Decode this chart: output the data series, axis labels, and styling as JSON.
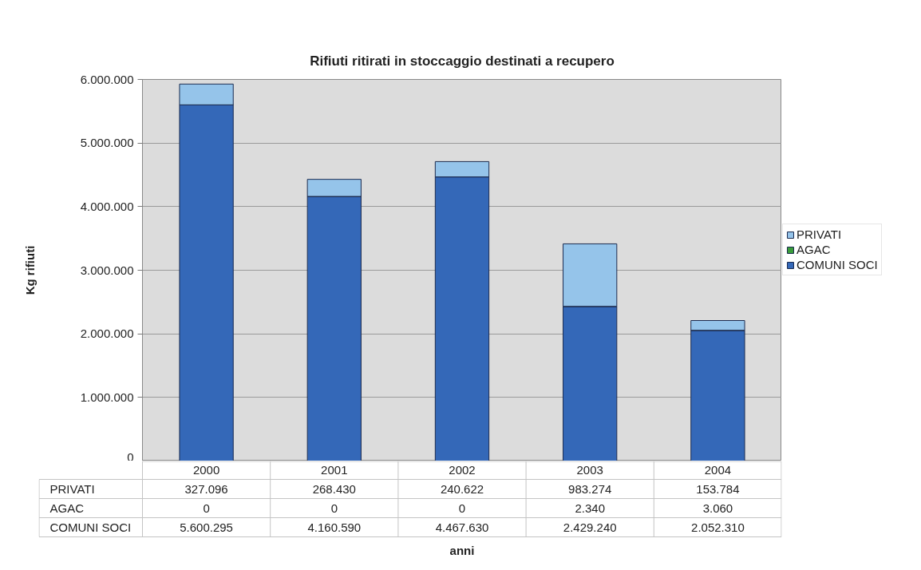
{
  "chart_data": {
    "type": "bar",
    "title": "Rifiuti ritirati in stoccaggio destinati a recupero",
    "ylabel": "Kg rifiuti",
    "annotations": [
      "anni"
    ],
    "categories": [
      "2000",
      "2001",
      "2002",
      "2003",
      "2004"
    ],
    "stacked": true,
    "series": [
      {
        "name": "COMUNI SOCI",
        "color": "#3468b8",
        "values": [
          5600295,
          4160590,
          4467630,
          2429240,
          2052310
        ],
        "value_labels": [
          "5.600.295",
          "4.160.590",
          "4.467.630",
          "2.429.240",
          "2.052.310"
        ]
      },
      {
        "name": "AGAC",
        "color": "#3a9c3a",
        "values": [
          0,
          0,
          0,
          2340,
          3060
        ],
        "value_labels": [
          "0",
          "0",
          "0",
          "2.340",
          "3.060"
        ]
      },
      {
        "name": "PRIVATI",
        "color": "#95c4ea",
        "values": [
          327096,
          268430,
          240622,
          983274,
          153784
        ],
        "value_labels": [
          "327.096",
          "268.430",
          "240.622",
          "983.274",
          "153.784"
        ]
      }
    ],
    "ylim": [
      0,
      6000000
    ],
    "yticks": [
      0,
      {
        "value": 1000000,
        "label": "1.000.000"
      },
      {
        "value": 2000000,
        "label": "2.000.000"
      },
      {
        "value": 3000000,
        "label": "3.000.000"
      },
      {
        "value": 4000000,
        "label": "4.000.000"
      },
      {
        "value": 5000000,
        "label": "5.000.000"
      },
      {
        "value": 6000000,
        "label": "6.000.000"
      }
    ],
    "grid": "y",
    "legend": "right"
  }
}
